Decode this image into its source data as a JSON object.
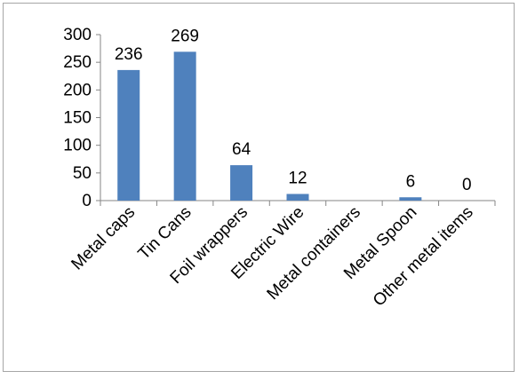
{
  "chart_data": {
    "type": "bar",
    "categories": [
      "Metal caps",
      "Tin Cans",
      "Foil wrappers",
      "Electric Wire",
      "Metal containers",
      "Metal Spoon",
      "Other metal items"
    ],
    "values": [
      236,
      269,
      64,
      12,
      0,
      6,
      0
    ],
    "data_labels": [
      "236",
      "269",
      "64",
      "12",
      "",
      "6",
      "0"
    ],
    "y_ticks": [
      "0",
      "50",
      "100",
      "150",
      "200",
      "250",
      "300"
    ],
    "ylim": [
      0,
      300
    ],
    "bar_color": "#4f81bd",
    "grid": false,
    "legend": "none"
  }
}
